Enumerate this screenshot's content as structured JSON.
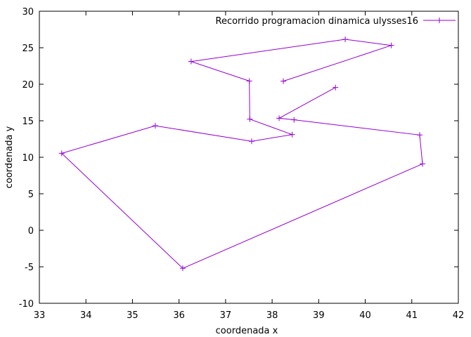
{
  "chart_data": {
    "type": "line",
    "title": "",
    "xlabel": "coordenada x",
    "ylabel": "coordenada y",
    "xlim": [
      33,
      42
    ],
    "ylim": [
      -10,
      30
    ],
    "x_ticks": [
      "33",
      "34",
      "35",
      "36",
      "37",
      "38",
      "39",
      "40",
      "41",
      "42"
    ],
    "y_ticks": [
      "-10",
      "-5",
      "0",
      "5",
      "10",
      "15",
      "20",
      "25",
      "30"
    ],
    "grid": false,
    "legend_position": "top-right",
    "series": [
      {
        "name": "Recorrido programacion dinamica ulysses16",
        "color": "#9400d3",
        "marker": "plus",
        "points": [
          {
            "x": 38.24,
            "y": 20.42
          },
          {
            "x": 40.56,
            "y": 25.32
          },
          {
            "x": 39.57,
            "y": 26.15
          },
          {
            "x": 36.26,
            "y": 23.12
          },
          {
            "x": 37.51,
            "y": 20.44
          },
          {
            "x": 37.52,
            "y": 15.22
          },
          {
            "x": 38.43,
            "y": 13.11
          },
          {
            "x": 37.56,
            "y": 12.19
          },
          {
            "x": 35.49,
            "y": 14.32
          },
          {
            "x": 33.48,
            "y": 10.54
          },
          {
            "x": 36.08,
            "y": -5.21
          },
          {
            "x": 41.23,
            "y": 9.1
          },
          {
            "x": 41.17,
            "y": 13.05
          },
          {
            "x": 38.47,
            "y": 15.13
          },
          {
            "x": 38.15,
            "y": 15.35
          },
          {
            "x": 39.36,
            "y": 19.56
          }
        ]
      }
    ]
  }
}
